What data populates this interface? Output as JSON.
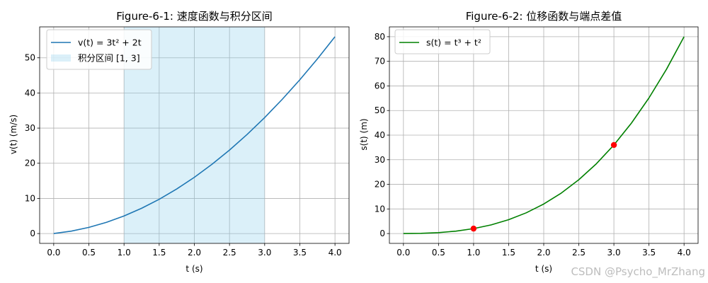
{
  "watermark": "CSDN @Psycho_MrZhang",
  "chart_data": [
    {
      "type": "line",
      "title": "Figure-6-1: 速度函数与积分区间",
      "xlabel": "t (s)",
      "ylabel": "v(t) (m/s)",
      "xlim": [
        -0.2,
        4.2
      ],
      "ylim": [
        -2.8,
        58.8
      ],
      "xticks": [
        0.0,
        0.5,
        1.0,
        1.5,
        2.0,
        2.5,
        3.0,
        3.5,
        4.0
      ],
      "xtick_labels": [
        "0.0",
        "0.5",
        "1.0",
        "1.5",
        "2.0",
        "2.5",
        "3.0",
        "3.5",
        "4.0"
      ],
      "yticks": [
        0,
        10,
        20,
        30,
        40,
        50
      ],
      "ytick_labels": [
        "0",
        "10",
        "20",
        "30",
        "40",
        "50"
      ],
      "grid": true,
      "legend_position": "top-left",
      "series": [
        {
          "name": "v(t) = 3t² + 2t",
          "color": "#1f77b4",
          "x": [
            0.0,
            0.25,
            0.5,
            0.75,
            1.0,
            1.25,
            1.5,
            1.75,
            2.0,
            2.25,
            2.5,
            2.75,
            3.0,
            3.25,
            3.5,
            3.75,
            4.0
          ],
          "y": [
            0.0,
            0.69,
            1.75,
            3.19,
            5.0,
            7.19,
            9.75,
            12.69,
            16.0,
            19.69,
            23.75,
            28.19,
            33.0,
            38.19,
            43.75,
            49.69,
            56.0
          ]
        }
      ],
      "shaded_region": {
        "name": "积分区间 [1, 3]",
        "x_range": [
          1,
          3
        ],
        "color": "#87ceeb"
      }
    },
    {
      "type": "line",
      "title": "Figure-6-2: 位移函数与端点差值",
      "xlabel": "t (s)",
      "ylabel": "s(t) (m)",
      "xlim": [
        -0.2,
        4.2
      ],
      "ylim": [
        -4.0,
        84.0
      ],
      "xticks": [
        0.0,
        0.5,
        1.0,
        1.5,
        2.0,
        2.5,
        3.0,
        3.5,
        4.0
      ],
      "xtick_labels": [
        "0.0",
        "0.5",
        "1.0",
        "1.5",
        "2.0",
        "2.5",
        "3.0",
        "3.5",
        "4.0"
      ],
      "yticks": [
        0,
        10,
        20,
        30,
        40,
        50,
        60,
        70,
        80
      ],
      "ytick_labels": [
        "0",
        "10",
        "20",
        "30",
        "40",
        "50",
        "60",
        "70",
        "80"
      ],
      "grid": true,
      "legend_position": "top-left",
      "series": [
        {
          "name": "s(t) = t³ + t²",
          "color": "#008000",
          "x": [
            0.0,
            0.25,
            0.5,
            0.75,
            1.0,
            1.25,
            1.5,
            1.75,
            2.0,
            2.25,
            2.5,
            2.75,
            3.0,
            3.25,
            3.5,
            3.75,
            4.0
          ],
          "y": [
            0.0,
            0.08,
            0.38,
            0.98,
            2.0,
            3.52,
            5.63,
            8.42,
            12.0,
            16.45,
            21.88,
            28.36,
            36.0,
            44.89,
            55.13,
            66.8,
            80.0
          ]
        }
      ],
      "points": {
        "color": "#ff0000",
        "x": [
          1,
          3
        ],
        "y": [
          2,
          36
        ]
      }
    }
  ]
}
